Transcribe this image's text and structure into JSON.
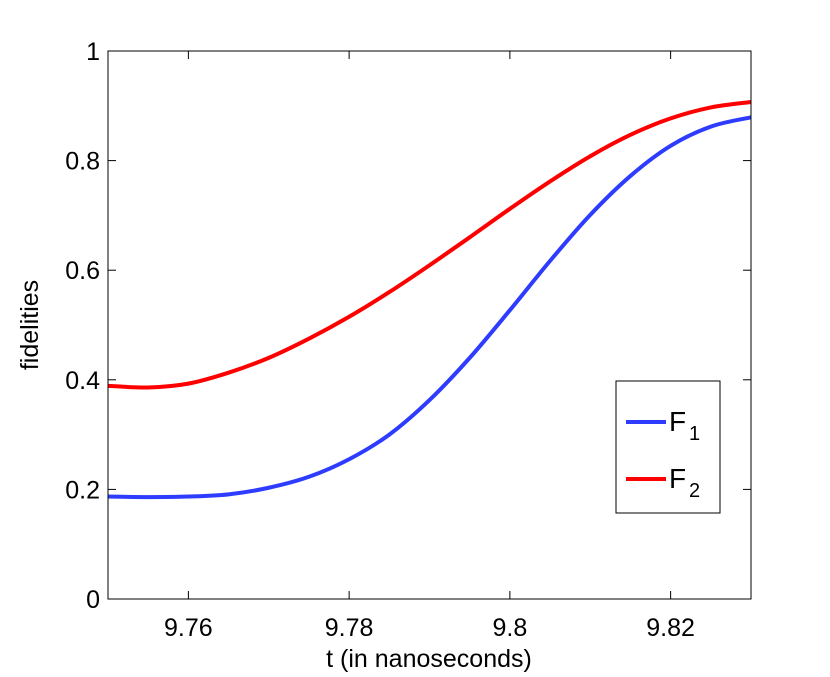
{
  "chart_data": {
    "type": "line",
    "xlabel": "t (in nanoseconds)",
    "ylabel": "fidelities",
    "xlim": [
      9.75,
      9.83
    ],
    "ylim": [
      0,
      1
    ],
    "xticks": [
      9.76,
      9.78,
      9.8,
      9.82
    ],
    "xtick_labels": [
      "9.76",
      "9.78",
      "9.8",
      "9.82"
    ],
    "yticks": [
      0,
      0.2,
      0.4,
      0.6,
      0.8,
      1
    ],
    "ytick_labels": [
      "0",
      "0.2",
      "0.4",
      "0.6",
      "0.8",
      "1"
    ],
    "grid": false,
    "legend_position": "lower-right",
    "x": [
      9.75,
      9.755,
      9.76,
      9.765,
      9.77,
      9.775,
      9.78,
      9.785,
      9.79,
      9.795,
      9.8,
      9.805,
      9.81,
      9.815,
      9.82,
      9.825,
      9.83
    ],
    "series": [
      {
        "name": "F1",
        "legend_main": "F",
        "legend_sub": "1",
        "color": "#2e3cff",
        "values": [
          0.187,
          0.186,
          0.187,
          0.191,
          0.203,
          0.223,
          0.255,
          0.3,
          0.363,
          0.44,
          0.527,
          0.617,
          0.701,
          0.772,
          0.827,
          0.862,
          0.879
        ]
      },
      {
        "name": "F2",
        "legend_main": "F",
        "legend_sub": "2",
        "color": "#ff0000",
        "values": [
          0.389,
          0.386,
          0.393,
          0.413,
          0.44,
          0.475,
          0.515,
          0.56,
          0.609,
          0.66,
          0.712,
          0.762,
          0.808,
          0.847,
          0.877,
          0.897,
          0.907
        ]
      }
    ]
  }
}
